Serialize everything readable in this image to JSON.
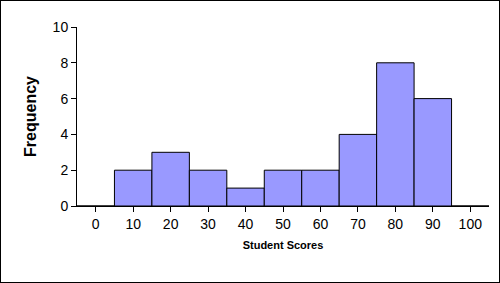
{
  "chart_data": {
    "type": "bar",
    "x_label": "Student Scores",
    "y_label": "Frequency",
    "categories": [
      "0",
      "10",
      "20",
      "30",
      "40",
      "50",
      "60",
      "70",
      "80",
      "90",
      "100"
    ],
    "values": [
      0,
      2,
      3,
      2,
      1,
      2,
      2,
      4,
      8,
      6,
      0
    ],
    "color": "#9999ff",
    "ylim": [
      0,
      10
    ],
    "yticks": [
      0,
      2,
      4,
      6,
      8,
      10
    ],
    "grid": false
  }
}
